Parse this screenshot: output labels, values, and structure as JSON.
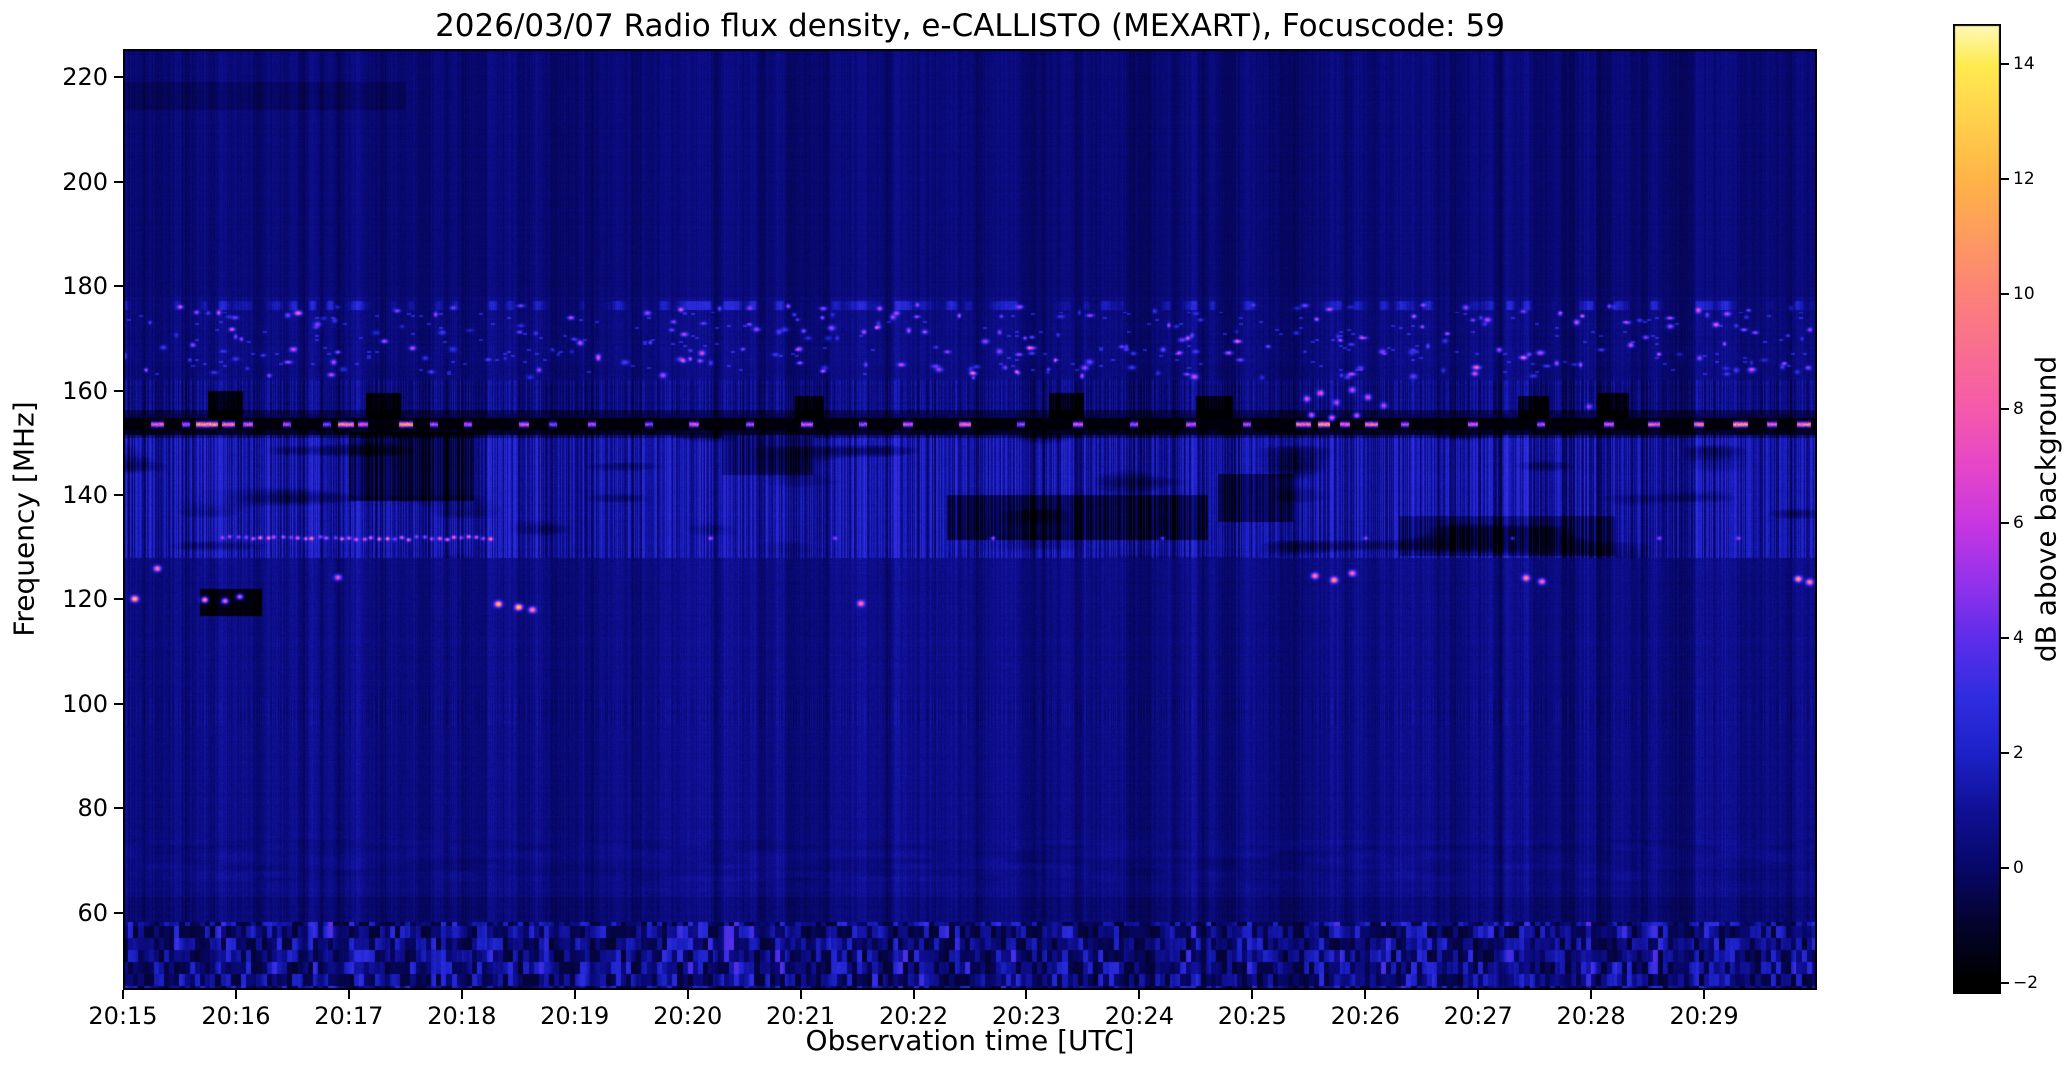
{
  "title": "2026/03/07  Radio flux density, e-CALLISTO (MEXART), Focuscode: 59",
  "chart_data": {
    "type": "heatmap",
    "title": "2026/03/07  Radio flux density, e-CALLISTO (MEXART), Focuscode: 59",
    "xlabel": "Observation time [UTC]",
    "ylabel": "Frequency [MHz]",
    "colorbar_label": "dB above background",
    "x_start": "20:15",
    "x_range_minutes": [
      0,
      15
    ],
    "x_ticks": [
      "20:15",
      "20:16",
      "20:17",
      "20:18",
      "20:19",
      "20:20",
      "20:21",
      "20:22",
      "20:23",
      "20:24",
      "20:25",
      "20:26",
      "20:27",
      "20:28",
      "20:29"
    ],
    "y_ticks": [
      60,
      80,
      100,
      120,
      140,
      160,
      180,
      200,
      220
    ],
    "freq_range_mhz": [
      45.2,
      225.4
    ],
    "value_range_db": [
      -2.2,
      14.7
    ],
    "grid": false,
    "colorbar_ticks": [
      {
        "v": 14,
        "label": "14"
      },
      {
        "v": 12,
        "label": "12"
      },
      {
        "v": 10,
        "label": "10"
      },
      {
        "v": 8,
        "label": "8"
      },
      {
        "v": 6,
        "label": "6"
      },
      {
        "v": 4,
        "label": "4"
      },
      {
        "v": 2,
        "label": "2"
      },
      {
        "v": 0,
        "label": "0"
      },
      {
        "v": -2,
        "label": "−2"
      }
    ],
    "colormap": [
      {
        "v": -2,
        "color": [
          0,
          0,
          0
        ]
      },
      {
        "v": -1,
        "color": [
          4,
          3,
          45
        ]
      },
      {
        "v": 0,
        "color": [
          7,
          7,
          105
        ]
      },
      {
        "v": 1,
        "color": [
          16,
          16,
          150
        ]
      },
      {
        "v": 2,
        "color": [
          28,
          34,
          200
        ]
      },
      {
        "v": 3,
        "color": [
          48,
          45,
          225
        ]
      },
      {
        "v": 4,
        "color": [
          95,
          45,
          235
        ]
      },
      {
        "v": 5,
        "color": [
          150,
          50,
          235
        ]
      },
      {
        "v": 6,
        "color": [
          200,
          55,
          225
        ]
      },
      {
        "v": 7,
        "color": [
          230,
          70,
          200
        ]
      },
      {
        "v": 8,
        "color": [
          245,
          90,
          170
        ]
      },
      {
        "v": 10,
        "color": [
          252,
          130,
          120
        ]
      },
      {
        "v": 12,
        "color": [
          255,
          180,
          70
        ]
      },
      {
        "v": 14,
        "color": [
          255,
          235,
          80
        ]
      },
      {
        "v": 15,
        "color": [
          255,
          255,
          235
        ]
      }
    ],
    "features": {
      "background_db": 0.5,
      "interference_line": {
        "freq": 153.6,
        "level_db": -2,
        "bursts": [
          [
            0.3,
            0.05,
            10
          ],
          [
            0.55,
            0.03,
            8
          ],
          [
            0.74,
            0.09,
            13
          ],
          [
            0.93,
            0.05,
            11
          ],
          [
            1.1,
            0.04,
            9
          ],
          [
            1.45,
            0.03,
            8
          ],
          [
            1.8,
            0.03,
            7
          ],
          [
            1.97,
            0.07,
            12
          ],
          [
            2.12,
            0.04,
            9
          ],
          [
            2.5,
            0.06,
            13
          ],
          [
            2.75,
            0.03,
            8
          ],
          [
            3.05,
            0.03,
            8
          ],
          [
            3.55,
            0.04,
            9
          ],
          [
            3.8,
            0.03,
            7
          ],
          [
            4.15,
            0.03,
            8
          ],
          [
            4.65,
            0.03,
            7
          ],
          [
            5.05,
            0.04,
            9
          ],
          [
            5.55,
            0.03,
            8
          ],
          [
            6.05,
            0.05,
            9
          ],
          [
            6.55,
            0.03,
            8
          ],
          [
            6.95,
            0.04,
            9
          ],
          [
            7.45,
            0.05,
            10
          ],
          [
            7.95,
            0.03,
            8
          ],
          [
            8.45,
            0.04,
            9
          ],
          [
            8.95,
            0.03,
            8
          ],
          [
            9.45,
            0.04,
            9
          ],
          [
            9.95,
            0.03,
            8
          ],
          [
            10.45,
            0.06,
            11
          ],
          [
            10.63,
            0.05,
            13
          ],
          [
            10.82,
            0.04,
            10
          ],
          [
            11.05,
            0.05,
            11
          ],
          [
            11.35,
            0.03,
            8
          ],
          [
            11.95,
            0.04,
            9
          ],
          [
            12.55,
            0.03,
            8
          ],
          [
            13.15,
            0.04,
            9
          ],
          [
            13.55,
            0.05,
            10
          ],
          [
            13.95,
            0.04,
            11
          ],
          [
            14.32,
            0.06,
            13
          ],
          [
            14.6,
            0.04,
            10
          ],
          [
            14.88,
            0.06,
            12
          ]
        ]
      },
      "activity_band": {
        "freq_lo": 128,
        "freq_hi": 151.5,
        "boost_db": 1.0
      },
      "dotted_line_132": {
        "freq": 131.8,
        "dense_interval": [
          0.88,
          3.3
        ],
        "sporadic": [
          5.2,
          6.3,
          7.7,
          9.2,
          11.0,
          12.3,
          13.6,
          14.3
        ],
        "strength_db": [
          4,
          9
        ]
      },
      "spot_events": [
        [
          0.1,
          120.2,
          13
        ],
        [
          0.3,
          126.0,
          10
        ],
        [
          0.72,
          120.0,
          12
        ],
        [
          0.9,
          119.8,
          10
        ],
        [
          1.03,
          120.6,
          9
        ],
        [
          1.9,
          124.3,
          8
        ],
        [
          3.32,
          119.2,
          13
        ],
        [
          3.5,
          118.6,
          14
        ],
        [
          3.62,
          118.1,
          10
        ],
        [
          6.53,
          119.3,
          9
        ],
        [
          10.55,
          124.6,
          10
        ],
        [
          10.72,
          123.8,
          11
        ],
        [
          10.88,
          125.1,
          9
        ],
        [
          12.42,
          124.2,
          10
        ],
        [
          12.56,
          123.5,
          9
        ],
        [
          14.83,
          124.0,
          11
        ],
        [
          14.93,
          123.4,
          10
        ]
      ],
      "magenta_spots": [
        [
          10.48,
          158.5,
          7
        ],
        [
          10.6,
          159.6,
          8
        ],
        [
          10.74,
          157.8,
          6
        ],
        [
          10.88,
          160.2,
          7
        ],
        [
          11.02,
          158.8,
          7
        ],
        [
          11.16,
          157.2,
          6
        ],
        [
          12.98,
          157.0,
          5
        ],
        [
          10.52,
          155.4,
          8
        ],
        [
          10.7,
          154.8,
          9
        ],
        [
          10.92,
          155.3,
          7
        ]
      ],
      "upper_band": {
        "freq_lo": 162.5,
        "freq_hi": 176.5,
        "dot_count": 260,
        "strength_db": [
          2.2,
          7.0
        ]
      },
      "faint_line": {
        "freq": 176.3,
        "boost_db": 1.2
      },
      "bottom_band": {
        "freq_lo": 45.2,
        "freq_hi": 58.3,
        "block_db": [
          -2.2,
          3.3
        ]
      },
      "dark_patches": [
        [
          0.68,
          1.22,
          117,
          122,
          -2.4
        ],
        [
          2.0,
          3.1,
          139,
          152,
          -1.8
        ],
        [
          5.3,
          6.1,
          144,
          151,
          -1.2
        ],
        [
          7.3,
          9.6,
          131.5,
          140,
          -1.9
        ],
        [
          9.7,
          10.35,
          135,
          144,
          -1.6
        ],
        [
          11.3,
          13.2,
          128.5,
          136,
          -1.3
        ],
        [
          0.0,
          2.5,
          214,
          219,
          -0.45
        ],
        [
          0.75,
          1.05,
          154.8,
          160,
          -2.6
        ],
        [
          2.15,
          2.45,
          155,
          159.5,
          -2.4
        ],
        [
          5.95,
          6.2,
          155,
          159,
          -2.2
        ],
        [
          8.2,
          8.5,
          155,
          159.5,
          -2.3
        ],
        [
          9.5,
          9.82,
          155,
          159,
          -2.2
        ],
        [
          12.35,
          12.62,
          155,
          159,
          -2.3
        ],
        [
          13.05,
          13.33,
          155,
          159.5,
          -2.2
        ]
      ]
    }
  }
}
